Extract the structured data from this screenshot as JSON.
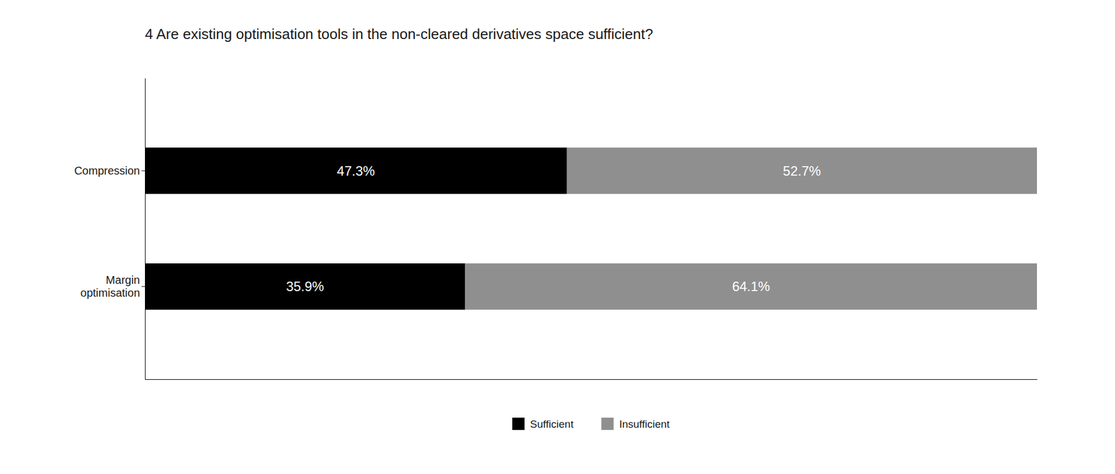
{
  "chart_data": {
    "type": "bar",
    "orientation": "horizontal",
    "stacked": true,
    "title": "4 Are existing optimisation tools in the non-cleared derivatives space sufficient?",
    "categories": [
      "Compression",
      "Margin\noptimisation"
    ],
    "series": [
      {
        "name": "Sufficient",
        "color": "#000000",
        "values": [
          47.3,
          35.9
        ],
        "value_labels": [
          "47.3%",
          "35.9%"
        ]
      },
      {
        "name": "Insufficient",
        "color": "#8f8f8f",
        "values": [
          52.7,
          64.1
        ],
        "value_labels": [
          "52.7%",
          "64.1%"
        ]
      }
    ],
    "xlim": [
      0,
      100
    ],
    "data_labels": true,
    "tick_labels": "y",
    "grid": false,
    "legend": "bottom"
  }
}
